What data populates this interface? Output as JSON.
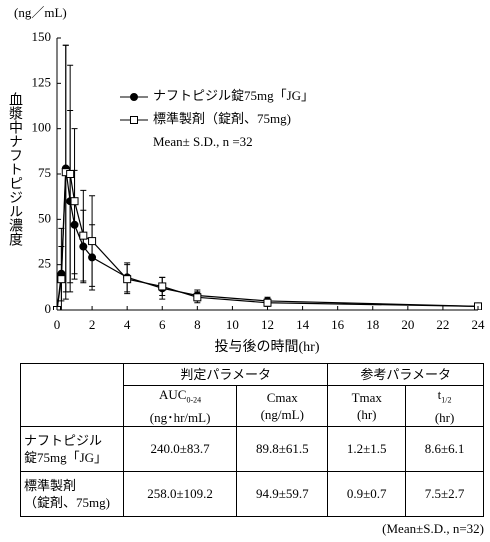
{
  "chart_data": {
    "type": "line",
    "unit_label": "(ng／mL)",
    "y_label": "血漿中ナフトピジル濃度",
    "x_label": "投与後の時間(hr)",
    "note": "Mean± S.D., n =32",
    "x": [
      0,
      0.25,
      0.5,
      0.75,
      1,
      1.5,
      2,
      4,
      6,
      8,
      12,
      24
    ],
    "series": [
      {
        "name": "ナフトピジル錠75mg「JG」",
        "color": "#000000",
        "marker": "circle",
        "values": [
          0,
          20,
          78,
          60,
          47,
          35,
          29,
          18,
          12,
          8,
          5,
          2
        ],
        "errors": [
          0,
          15,
          68,
          50,
          30,
          20,
          18,
          8,
          6,
          3,
          2,
          1
        ]
      },
      {
        "name": "標準製剤（錠剤、75mg)",
        "color": "#000000",
        "marker": "square",
        "values": [
          0,
          17,
          76,
          75,
          60,
          41,
          38,
          17,
          13,
          7,
          4,
          2
        ],
        "errors": [
          0,
          28,
          70,
          60,
          40,
          25,
          25,
          8,
          5,
          3,
          2,
          1
        ]
      }
    ],
    "xlim": [
      0,
      24
    ],
    "ylim": [
      0,
      150
    ],
    "xticks": [
      0,
      2,
      4,
      6,
      8,
      10,
      12,
      14,
      16,
      18,
      20,
      22,
      24
    ],
    "yticks": [
      0,
      25,
      50,
      75,
      100,
      125,
      150
    ],
    "grid": false
  },
  "table": {
    "groups": [
      "判定パラメータ",
      "参考パラメータ"
    ],
    "columns": [
      {
        "name": "AUC",
        "sub": "0-24",
        "unit": "(ng･hr/mL)"
      },
      {
        "name": "Cmax",
        "unit": "(ng/mL)"
      },
      {
        "name": "Tmax",
        "unit": "(hr)"
      },
      {
        "name": "t",
        "sub": "1/2",
        "unit": "(hr)"
      }
    ],
    "rows": [
      {
        "label": [
          "ナフトピジル",
          "錠75mg「JG」"
        ],
        "cells": [
          "240.0±83.7",
          "89.8±61.5",
          "1.2±1.5",
          "8.6±6.1"
        ]
      },
      {
        "label": [
          "標準製剤",
          "（錠剤、75mg)"
        ],
        "cells": [
          "258.0±109.2",
          "94.9±59.7",
          "0.9±0.7",
          "7.5±2.7"
        ]
      }
    ],
    "footnote": "(Mean±S.D., n=32)"
  }
}
